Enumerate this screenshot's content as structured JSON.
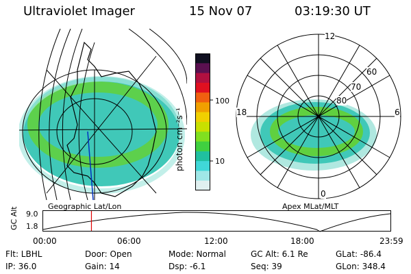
{
  "header": {
    "instrument": "Ultraviolet Imager",
    "date": "15 Nov 07",
    "time": "03:19:30 UT"
  },
  "panels": {
    "left_label": "Geographic Lat/Lon",
    "right_label": "Apex MLat/MLT"
  },
  "colorbar": {
    "units_label": "photon cm⁻²s⁻¹",
    "ticks": [
      "100",
      "10"
    ],
    "colors": [
      "#101020",
      "#5a1050",
      "#b01040",
      "#e01020",
      "#f06010",
      "#f0a000",
      "#f0d000",
      "#c8e000",
      "#80e020",
      "#40d040",
      "#20c0a0",
      "#40d8d8",
      "#a0e8e8",
      "#e0f0f0"
    ]
  },
  "polar_plot": {
    "mlt_labels": [
      "12",
      "18",
      "6",
      "0"
    ],
    "mlat_labels": [
      "60",
      "70",
      "80"
    ]
  },
  "altitude_plot": {
    "ylabel": "GC Alt",
    "yticks": [
      "9.0",
      "1.8"
    ],
    "xticks": [
      "00:00",
      "06:00",
      "12:00",
      "18:00",
      "23:59"
    ],
    "current_time_fraction": 0.139
  },
  "info": {
    "flt": "Flt: LBHL",
    "ip": "IP: 36.0",
    "door": "Door: Open",
    "gain": "Gain: 14",
    "mode": "Mode: Normal",
    "dsp": "Dsp:    -6.1",
    "gc_alt": "GC Alt: 6.1 Re",
    "seq": "Seq: 39",
    "glat": "GLat: -86.4",
    "glon": "GLon: 348.4"
  }
}
